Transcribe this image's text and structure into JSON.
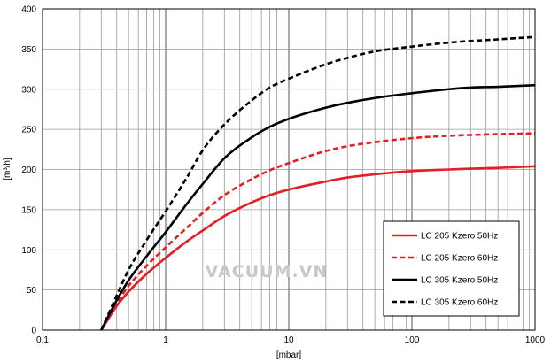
{
  "watermark": "VACUUM.VN",
  "chart_data": {
    "type": "line",
    "title": "",
    "xlabel": "[mbar]",
    "ylabel": "[m³/h]",
    "xscale": "log",
    "xlim": [
      0.1,
      1000
    ],
    "ylim": [
      0,
      400
    ],
    "xticks": [
      "0,1",
      "1",
      "10",
      "100",
      "1000"
    ],
    "yticks": [
      "0",
      "50",
      "100",
      "150",
      "200",
      "250",
      "300",
      "350",
      "400"
    ],
    "grid": true,
    "legend_position": "bottom-right",
    "x": [
      0.3,
      0.4,
      0.5,
      0.7,
      1,
      1.5,
      2,
      3,
      5,
      7,
      10,
      20,
      30,
      50,
      100,
      200,
      300,
      500,
      1000
    ],
    "series": [
      {
        "name": "LC 205 Kzero 50Hz",
        "color": "#e31e24",
        "dash": "solid",
        "values": [
          0,
          30,
          48,
          70,
          90,
          111,
          124,
          142,
          159,
          168,
          175,
          185,
          190,
          194,
          198,
          200,
          201,
          202,
          204
        ]
      },
      {
        "name": "LC 205 Kzero 60Hz",
        "color": "#e31e24",
        "dash": "dashed",
        "values": [
          0,
          33,
          55,
          80,
          103,
          128,
          146,
          168,
          188,
          199,
          208,
          223,
          229,
          234,
          239,
          242,
          243,
          244,
          245
        ]
      },
      {
        "name": "LC 305 Kzero 50Hz",
        "color": "#000000",
        "dash": "solid",
        "values": [
          0,
          37,
          62,
          92,
          122,
          158,
          182,
          214,
          240,
          253,
          263,
          277,
          283,
          289,
          295,
          300,
          302,
          303,
          305
        ]
      },
      {
        "name": "LC 305 Kzero 60Hz",
        "color": "#000000",
        "dash": "dashed",
        "values": [
          0,
          43,
          75,
          112,
          148,
          191,
          224,
          256,
          286,
          302,
          313,
          331,
          339,
          347,
          353,
          358,
          360,
          362,
          365
        ]
      }
    ]
  }
}
